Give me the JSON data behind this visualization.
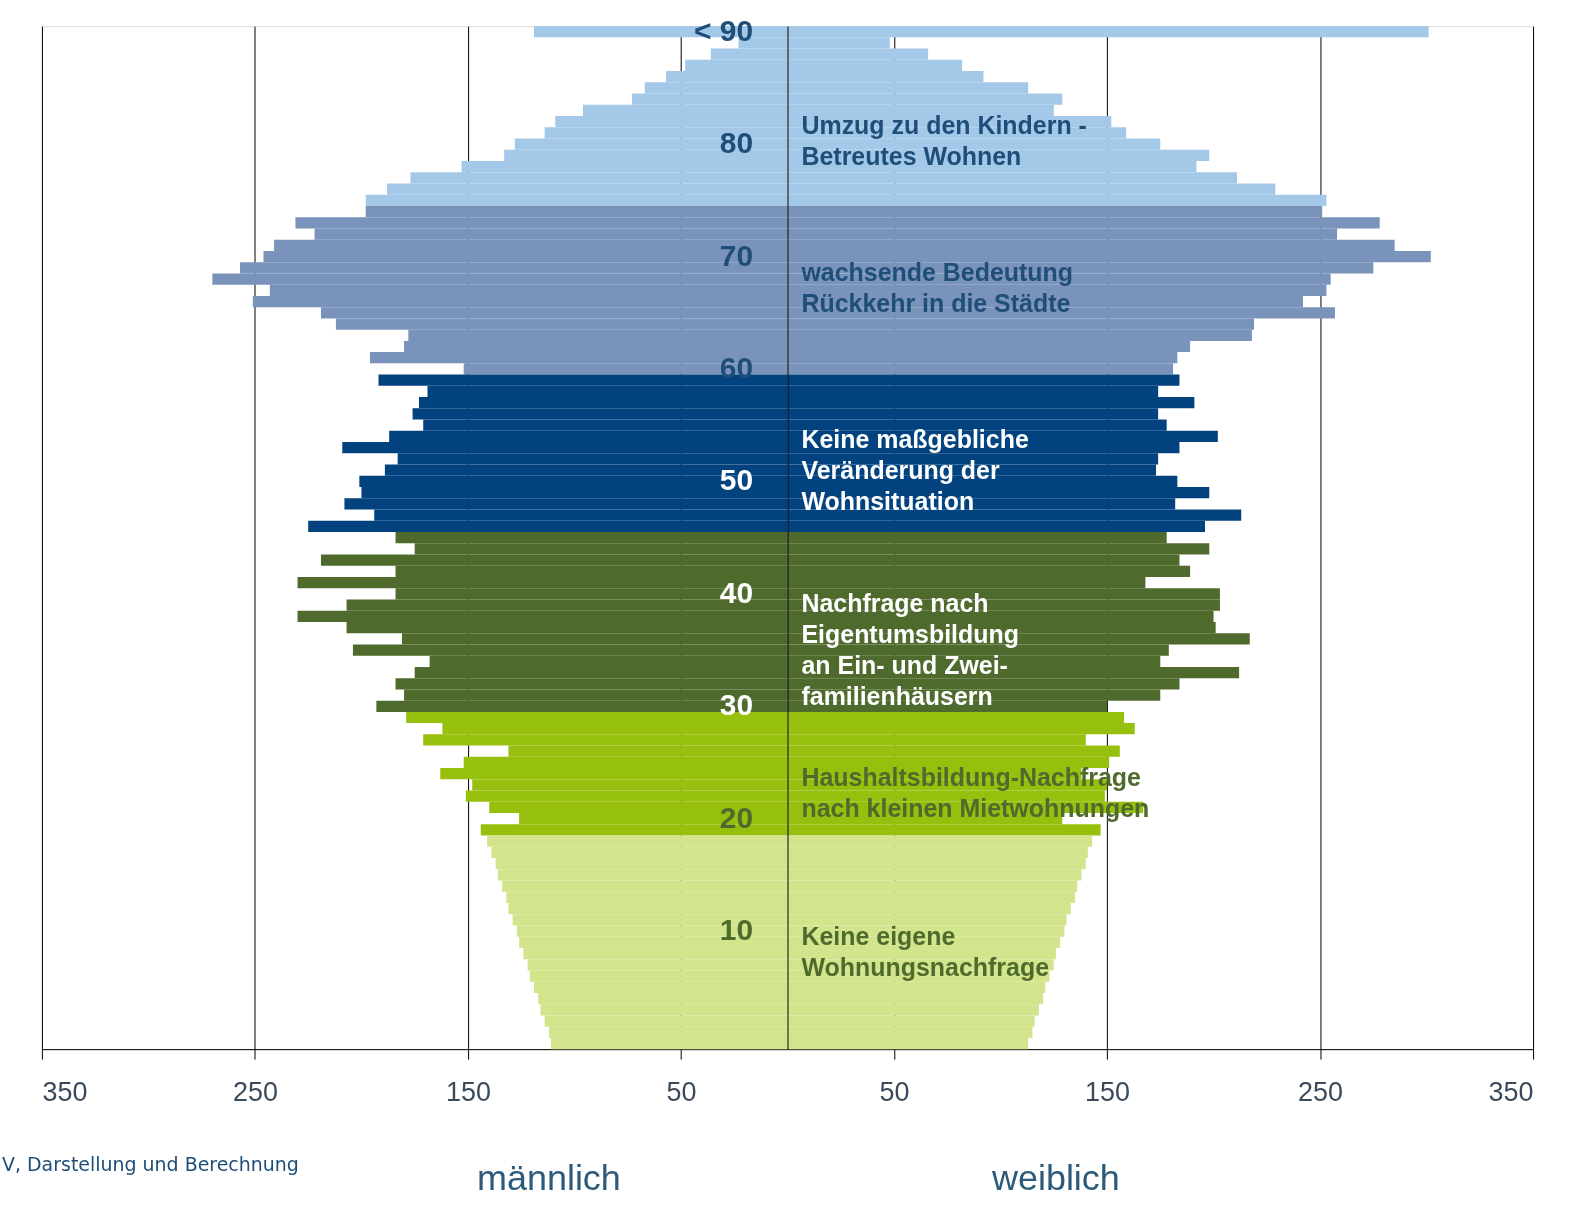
{
  "chart_data": {
    "type": "bar",
    "orientation": "horizontal",
    "stacked": true,
    "categories": [
      "< 90",
      null,
      null,
      null,
      null,
      null,
      null,
      null,
      null,
      null,
      "80",
      null,
      null,
      null,
      null,
      null,
      null,
      null,
      null,
      null,
      "70",
      null,
      null,
      null,
      null,
      null,
      null,
      null,
      null,
      null,
      "60",
      null,
      null,
      null,
      null,
      null,
      null,
      null,
      null,
      null,
      "50",
      null,
      null,
      null,
      null,
      null,
      null,
      null,
      null,
      null,
      "40",
      null,
      null,
      null,
      null,
      null,
      null,
      null,
      null,
      null,
      "30",
      null,
      null,
      null,
      null,
      null,
      null,
      null,
      null,
      null,
      "20",
      null,
      null,
      null,
      null,
      null,
      null,
      null,
      null,
      null,
      "10",
      null,
      null,
      null,
      null,
      null,
      null,
      null,
      null,
      null,
      null
    ],
    "series": [
      {
        "name": "männlich",
        "values": [
          -119,
          -23,
          -36,
          -48,
          -57,
          -67,
          -73,
          -96,
          -109,
          -114,
          -128,
          -133,
          -153,
          -177,
          -188,
          -198,
          -198,
          -231,
          -222,
          -241,
          -246,
          -257,
          -270,
          -243,
          -251,
          -219,
          -212,
          -178,
          -180,
          -196,
          -152,
          -192,
          -169,
          -173,
          -176,
          -171,
          -187,
          -209,
          -183,
          -189,
          -201,
          -200,
          -208,
          -194,
          -225,
          -184,
          -175,
          -219,
          -184,
          -230,
          -184,
          -207,
          -230,
          -207,
          -181,
          -204,
          -168,
          -175,
          -184,
          -180,
          -193,
          -179,
          -162,
          -171,
          -131,
          -152,
          -163,
          -148,
          -151,
          -140,
          -126,
          -144,
          -141,
          -139,
          -137,
          -136,
          -134,
          -132,
          -131,
          -129,
          -127,
          -126,
          -124,
          -122,
          -121,
          -119,
          -117,
          -116,
          -114,
          -112,
          -111
        ],
        "colors": [
          "#a3c8e8",
          "#a3c8e8",
          "#a3c8e8",
          "#a3c8e8",
          "#a3c8e8",
          "#a3c8e8",
          "#a3c8e8",
          "#a3c8e8",
          "#a3c8e8",
          "#a3c8e8",
          "#a3c8e8",
          "#a3c8e8",
          "#a3c8e8",
          "#a3c8e8",
          "#a3c8e8",
          "#a3c8e8",
          "#7a93bb",
          "#7a93bb",
          "#7a93bb",
          "#7a93bb",
          "#7a93bb",
          "#7a93bb",
          "#7a93bb",
          "#7a93bb",
          "#7a93bb",
          "#7a93bb",
          "#7a93bb",
          "#7a93bb",
          "#7a93bb",
          "#7a93bb",
          "#7a93bb",
          "#02437f",
          "#02437f",
          "#02437f",
          "#02437f",
          "#02437f",
          "#02437f",
          "#02437f",
          "#02437f",
          "#02437f",
          "#02437f",
          "#02437f",
          "#02437f",
          "#02437f",
          "#02437f",
          "#4e6a2c",
          "#4e6a2c",
          "#4e6a2c",
          "#4e6a2c",
          "#4e6a2c",
          "#4e6a2c",
          "#4e6a2c",
          "#4e6a2c",
          "#4e6a2c",
          "#4e6a2c",
          "#4e6a2c",
          "#4e6a2c",
          "#4e6a2c",
          "#4e6a2c",
          "#4e6a2c",
          "#4e6a2c",
          "#97c00e",
          "#97c00e",
          "#97c00e",
          "#97c00e",
          "#97c00e",
          "#97c00e",
          "#97c00e",
          "#97c00e",
          "#97c00e",
          "#97c00e",
          "#97c00e",
          "#d3e58c",
          "#d3e58c",
          "#d3e58c",
          "#d3e58c",
          "#d3e58c",
          "#d3e58c",
          "#d3e58c",
          "#d3e58c",
          "#d3e58c",
          "#d3e58c",
          "#d3e58c",
          "#d3e58c",
          "#d3e58c",
          "#d3e58c",
          "#d3e58c",
          "#d3e58c",
          "#d3e58c",
          "#d3e58c",
          "#d3e58c"
        ]
      },
      {
        "name": "weiblich",
        "values": [
          301,
          48,
          66,
          82,
          92,
          113,
          129,
          125,
          152,
          159,
          175,
          198,
          192,
          211,
          229,
          253,
          251,
          278,
          258,
          285,
          302,
          275,
          255,
          253,
          242,
          257,
          219,
          218,
          189,
          183,
          181,
          184,
          174,
          191,
          174,
          178,
          202,
          184,
          174,
          173,
          183,
          198,
          182,
          213,
          196,
          178,
          198,
          184,
          189,
          168,
          203,
          203,
          200,
          201,
          217,
          179,
          175,
          212,
          184,
          175,
          150,
          158,
          163,
          140,
          156,
          151,
          138,
          150,
          149,
          167,
          129,
          147,
          143,
          141,
          140,
          138,
          136,
          135,
          133,
          131,
          130,
          128,
          126,
          125,
          123,
          121,
          120,
          118,
          116,
          115,
          113
        ],
        "colors": [
          "#a3c8e8",
          "#a3c8e8",
          "#a3c8e8",
          "#a3c8e8",
          "#a3c8e8",
          "#a3c8e8",
          "#a3c8e8",
          "#a3c8e8",
          "#a3c8e8",
          "#a3c8e8",
          "#a3c8e8",
          "#a3c8e8",
          "#a3c8e8",
          "#a3c8e8",
          "#a3c8e8",
          "#a3c8e8",
          "#7a93bb",
          "#7a93bb",
          "#7a93bb",
          "#7a93bb",
          "#7a93bb",
          "#7a93bb",
          "#7a93bb",
          "#7a93bb",
          "#7a93bb",
          "#7a93bb",
          "#7a93bb",
          "#7a93bb",
          "#7a93bb",
          "#7a93bb",
          "#7a93bb",
          "#02437f",
          "#02437f",
          "#02437f",
          "#02437f",
          "#02437f",
          "#02437f",
          "#02437f",
          "#02437f",
          "#02437f",
          "#02437f",
          "#02437f",
          "#02437f",
          "#02437f",
          "#02437f",
          "#4e6a2c",
          "#4e6a2c",
          "#4e6a2c",
          "#4e6a2c",
          "#4e6a2c",
          "#4e6a2c",
          "#4e6a2c",
          "#4e6a2c",
          "#4e6a2c",
          "#4e6a2c",
          "#4e6a2c",
          "#4e6a2c",
          "#4e6a2c",
          "#4e6a2c",
          "#4e6a2c",
          "#4e6a2c",
          "#97c00e",
          "#97c00e",
          "#97c00e",
          "#97c00e",
          "#97c00e",
          "#97c00e",
          "#97c00e",
          "#97c00e",
          "#97c00e",
          "#97c00e",
          "#97c00e",
          "#d3e58c",
          "#d3e58c",
          "#d3e58c",
          "#d3e58c",
          "#d3e58c",
          "#d3e58c",
          "#d3e58c",
          "#d3e58c",
          "#d3e58c",
          "#d3e58c",
          "#d3e58c",
          "#d3e58c",
          "#d3e58c",
          "#d3e58c",
          "#d3e58c",
          "#d3e58c",
          "#d3e58c",
          "#d3e58c",
          "#d3e58c"
        ]
      }
    ],
    "xlim": [
      -350,
      350
    ],
    "xticks": [
      {
        "value": -350,
        "label": "350"
      },
      {
        "value": -250,
        "label": "250"
      },
      {
        "value": -150,
        "label": "150"
      },
      {
        "value": -50,
        "label": "50"
      },
      50,
      150,
      250,
      350
    ],
    "grid": "x",
    "annotations": [
      "Umzug zu den Kindern -\nBetreutes Wohnen",
      "wachsende Bedeutung\nRückkehr in die Städte",
      "Keine maßgebliche\nVeränderung der\nWohnsituation",
      "Nachfrage nach\nEigentumsbildung\nan Ein- und Zwei-\nfamilienhäusern",
      "Haushaltsbildung-Nachfrage\nnach kleinen Mietwohnungen",
      "Keine eigene\nWohnungsnachfrage",
      "V, Darstellung und Berechnung"
    ]
  }
}
